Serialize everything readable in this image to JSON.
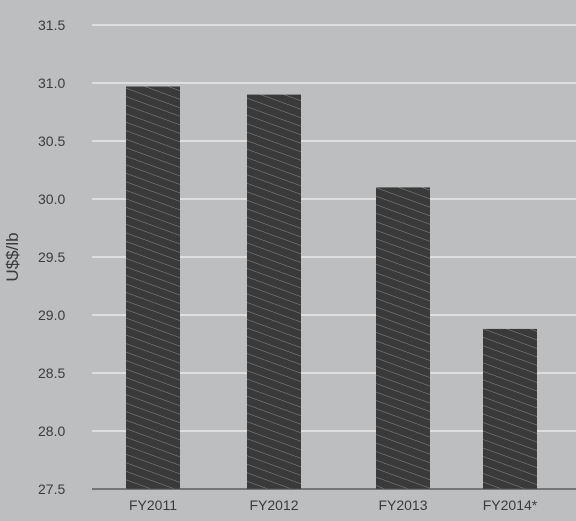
{
  "chart_data": {
    "type": "bar",
    "categories": [
      "FY2011",
      "FY2012",
      "FY2013",
      "FY2014*"
    ],
    "values": [
      30.97,
      30.9,
      30.1,
      28.88
    ],
    "ylabel": "U$$/lb",
    "xlabel": "",
    "ylim": [
      27.5,
      31.5
    ],
    "yticks": [
      {
        "value": 27.5,
        "label": "27.5"
      },
      {
        "value": 28.0,
        "label": "28.0"
      },
      {
        "value": 28.5,
        "label": "28.5"
      },
      {
        "value": 29.0,
        "label": "29.0"
      },
      {
        "value": 29.5,
        "label": "29.5"
      },
      {
        "value": 30.0,
        "label": "30.0"
      },
      {
        "value": 30.5,
        "label": "30.5"
      },
      {
        "value": 31.0,
        "label": "31.0"
      },
      {
        "value": 31.5,
        "label": "31.5"
      }
    ],
    "grid": true,
    "colors": {
      "background": "#bdbebf",
      "bar": "#3a3a3a",
      "hatch": "#8a8a8a",
      "grid": "#ffffff",
      "text": "#3b3b3b",
      "axis": "#4a4a4a"
    }
  }
}
